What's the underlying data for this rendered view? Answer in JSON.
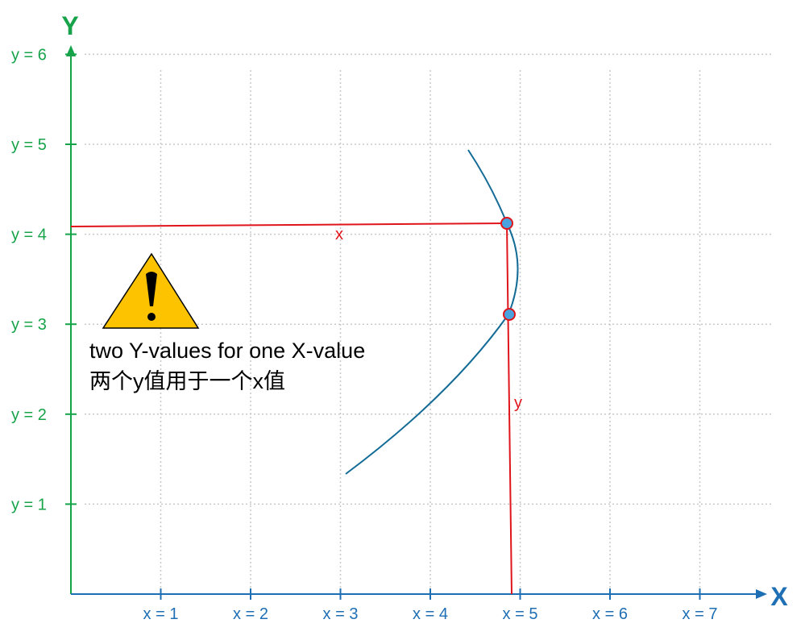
{
  "axes": {
    "y_label": "Y",
    "x_label": "X"
  },
  "y_ticks": [
    "y = 1",
    "y = 2",
    "y = 3",
    "y = 4",
    "y = 5",
    "y = 6"
  ],
  "x_ticks": [
    "x = 1",
    "x = 2",
    "x = 3",
    "x = 4",
    "x = 5",
    "x = 6",
    "x = 7"
  ],
  "annotation": {
    "line1": "two Y-values for one X-value",
    "line2": "两个y值用于一个x值"
  },
  "markers": {
    "x": "x",
    "y": "y"
  }
}
